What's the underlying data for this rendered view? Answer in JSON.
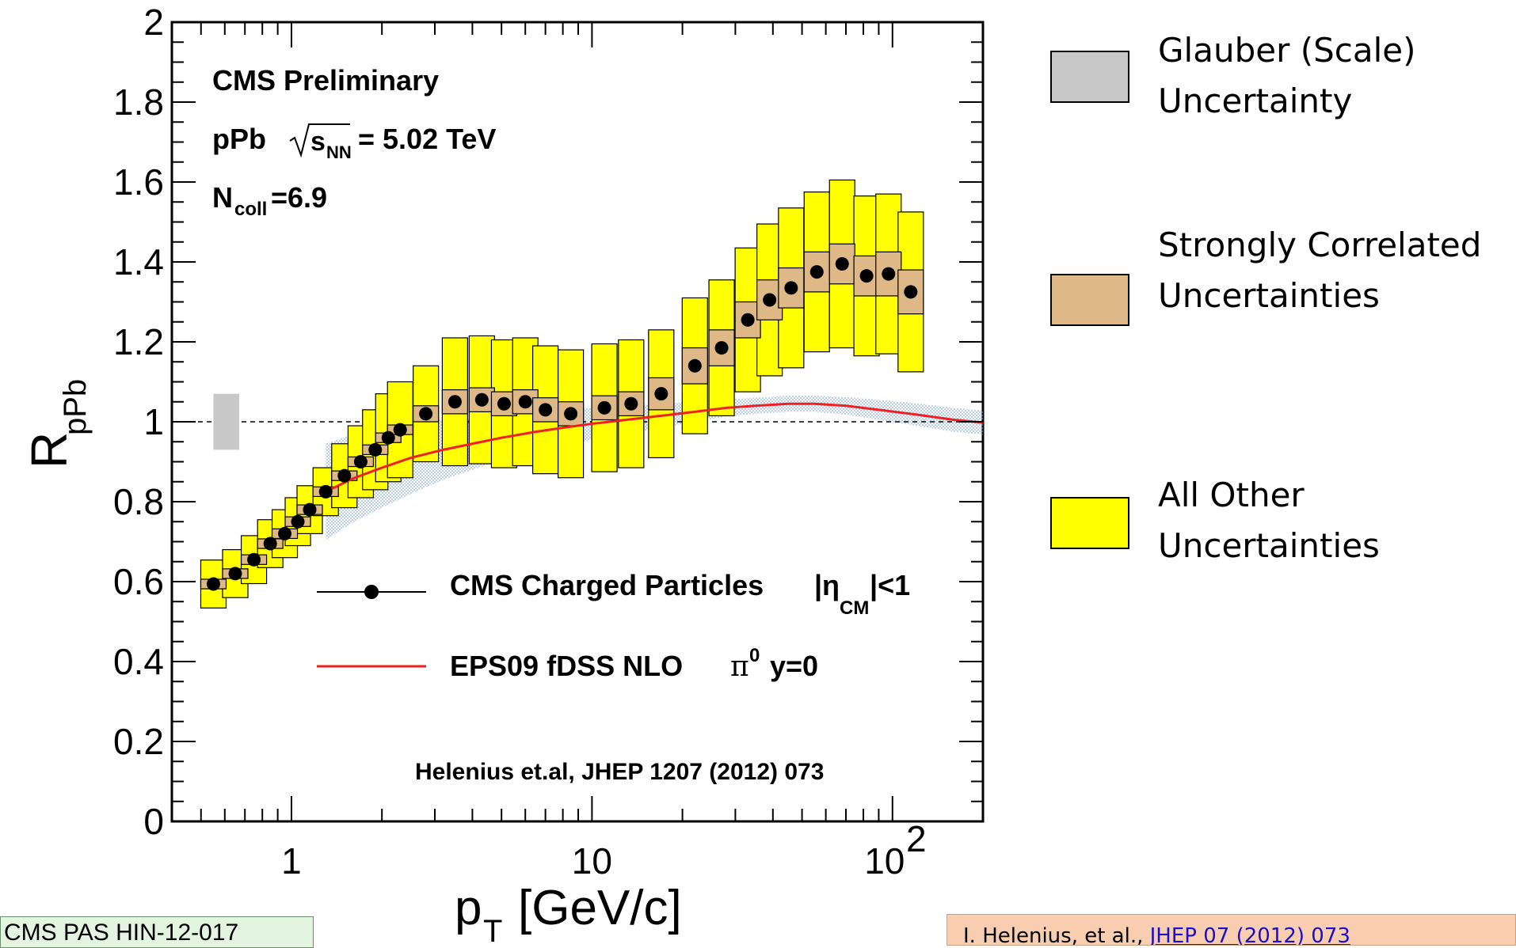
{
  "chart_data": {
    "type": "scatter",
    "title": "",
    "xlabel": "p_T [GeV/c]",
    "ylabel": "R_pPb",
    "xscale": "log",
    "xlim": [
      0.4,
      200
    ],
    "ylim": [
      0,
      2
    ],
    "yticks": [
      "0",
      "0.2",
      "0.4",
      "0.6",
      "0.8",
      "1",
      "1.2",
      "1.4",
      "1.6",
      "1.8",
      "2"
    ],
    "xticks": [
      "1",
      "10",
      "10^2"
    ],
    "reference_line": 1,
    "annotations": {
      "experiment": "CMS Preliminary",
      "system": "pPb",
      "energy": "= 5.02 TeV",
      "ncoll": "=6.9",
      "citation": "Helenius et.al, JHEP 1207 (2012) 073"
    },
    "series": [
      {
        "name": "CMS Charged Particles |η_CM|<1",
        "x": [
          0.55,
          0.65,
          0.75,
          0.85,
          0.95,
          1.05,
          1.15,
          1.3,
          1.5,
          1.7,
          1.9,
          2.1,
          2.3,
          2.8,
          3.5,
          4.3,
          5.1,
          6.0,
          7.0,
          8.5,
          11,
          13.5,
          17,
          22,
          27,
          33,
          39,
          46,
          56,
          68,
          82,
          97,
          115
        ],
        "y": [
          0.594,
          0.62,
          0.655,
          0.695,
          0.72,
          0.75,
          0.78,
          0.825,
          0.865,
          0.9,
          0.93,
          0.96,
          0.98,
          1.02,
          1.05,
          1.055,
          1.045,
          1.05,
          1.03,
          1.02,
          1.035,
          1.045,
          1.07,
          1.14,
          1.185,
          1.255,
          1.305,
          1.335,
          1.375,
          1.395,
          1.365,
          1.37,
          1.325
        ],
        "strong_uncertainty": [
          0.012,
          0.012,
          0.012,
          0.012,
          0.012,
          0.012,
          0.012,
          0.012,
          0.012,
          0.012,
          0.012,
          0.012,
          0.012,
          0.02,
          0.03,
          0.03,
          0.03,
          0.03,
          0.03,
          0.03,
          0.03,
          0.03,
          0.04,
          0.045,
          0.045,
          0.045,
          0.05,
          0.05,
          0.05,
          0.05,
          0.05,
          0.055,
          0.055
        ],
        "other_uncertainty": [
          0.06,
          0.06,
          0.06,
          0.06,
          0.06,
          0.06,
          0.06,
          0.06,
          0.08,
          0.09,
          0.1,
          0.11,
          0.12,
          0.12,
          0.16,
          0.16,
          0.16,
          0.16,
          0.16,
          0.16,
          0.16,
          0.16,
          0.16,
          0.17,
          0.17,
          0.18,
          0.19,
          0.2,
          0.2,
          0.21,
          0.2,
          0.2,
          0.2
        ]
      },
      {
        "name": "EPS09 fDSS NLO π⁰ y=0",
        "x": [
          1.3,
          1.6,
          2,
          2.5,
          3.2,
          4,
          5,
          6.5,
          8,
          10,
          13,
          17,
          22,
          28,
          35,
          45,
          55,
          70,
          90,
          120,
          160,
          200
        ],
        "y": [
          0.825,
          0.858,
          0.885,
          0.91,
          0.93,
          0.945,
          0.96,
          0.975,
          0.985,
          0.995,
          1.005,
          1.015,
          1.025,
          1.035,
          1.04,
          1.045,
          1.045,
          1.04,
          1.03,
          1.018,
          1.005,
          0.998
        ],
        "band_halfwidth": [
          0.12,
          0.11,
          0.1,
          0.09,
          0.075,
          0.065,
          0.055,
          0.05,
          0.045,
          0.04,
          0.035,
          0.03,
          0.025,
          0.022,
          0.02,
          0.02,
          0.02,
          0.022,
          0.025,
          0.028,
          0.03,
          0.03
        ]
      }
    ],
    "glauber_uncertainty": {
      "x": [
        0.55,
        0.67
      ],
      "y": [
        0.93,
        1.07
      ]
    },
    "legend": {
      "in_plot": [
        "CMS Charged Particles",
        "EPS09 fDSS NLO"
      ],
      "outside": [
        "Glauber (Scale)\nUncertainty",
        "Strongly Correlated\nUncertainties",
        "All Other\nUncertainties"
      ]
    },
    "colors": {
      "glauber": "#c8c8c8",
      "strong": "#deb887",
      "other": "#ffff00",
      "eps09_line": "#ee2020",
      "eps09_band": "#9ab4dc",
      "points": "#000000"
    }
  },
  "references": {
    "left": "CMS PAS HIN-12-017",
    "right_prefix": "I. Helenius, et al., ",
    "right_link": "JHEP 07 (2012) 073"
  }
}
